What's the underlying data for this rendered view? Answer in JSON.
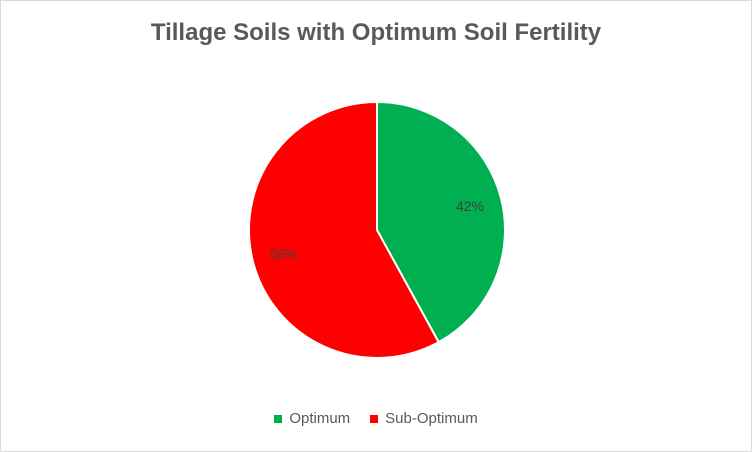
{
  "chart_data": {
    "type": "pie",
    "title": "Tillage Soils with Optimum Soil Fertility",
    "categories": [
      "Optimum",
      "Sub-Optimum"
    ],
    "values": [
      42,
      58
    ],
    "labels": [
      "42%",
      "58%"
    ],
    "colors": [
      "#00b050",
      "#ff0000"
    ],
    "legend_position": "bottom"
  }
}
